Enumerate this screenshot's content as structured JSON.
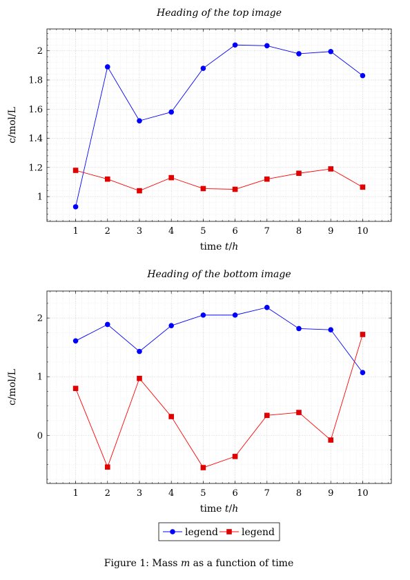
{
  "chart_data": [
    {
      "type": "line",
      "title": "Heading of the top image",
      "xlabel": "time t/h",
      "ylabel": "c/mol/L",
      "x": [
        1,
        2,
        3,
        4,
        5,
        6,
        7,
        8,
        9,
        10
      ],
      "xlim": [
        0.1,
        10.9
      ],
      "ylim": [
        0.83,
        2.15
      ],
      "yticks": [
        1,
        1.2,
        1.4,
        1.6,
        1.8,
        2
      ],
      "yminor_step": 0.04,
      "grid": true,
      "series": [
        {
          "name": "legend",
          "color": "#0000ff",
          "marker": "circle",
          "values": [
            0.93,
            1.89,
            1.52,
            1.58,
            1.88,
            2.04,
            2.035,
            1.98,
            1.995,
            1.83
          ]
        },
        {
          "name": "legend",
          "color": "#ff0000",
          "marker": "square",
          "values": [
            1.18,
            1.12,
            1.04,
            1.13,
            1.055,
            1.05,
            1.12,
            1.16,
            1.19,
            1.065
          ]
        }
      ]
    },
    {
      "type": "line",
      "title": "Heading of the bottom image",
      "xlabel": "time t/h",
      "ylabel": "c/mol/L",
      "x": [
        1,
        2,
        3,
        4,
        5,
        6,
        7,
        8,
        9,
        10
      ],
      "xlim": [
        0.1,
        10.9
      ],
      "ylim": [
        -0.82,
        2.46
      ],
      "yticks": [
        0,
        1,
        2
      ],
      "yminor_step": 0.25,
      "grid": true,
      "series": [
        {
          "name": "legend",
          "color": "#0000ff",
          "marker": "circle",
          "values": [
            1.61,
            1.89,
            1.43,
            1.87,
            2.05,
            2.05,
            2.18,
            1.82,
            1.8,
            1.07
          ]
        },
        {
          "name": "legend",
          "color": "#ff0000",
          "marker": "square",
          "values": [
            0.8,
            -0.54,
            0.97,
            0.32,
            -0.55,
            -0.36,
            0.34,
            0.39,
            -0.08,
            1.72
          ]
        }
      ]
    }
  ],
  "legend": {
    "position": "bottom-center",
    "entries": [
      {
        "label": "legend",
        "color": "#0000ff",
        "marker": "circle"
      },
      {
        "label": "legend",
        "color": "#ff0000",
        "marker": "square"
      }
    ]
  },
  "caption": {
    "prefix": "Figure 1: Mass ",
    "symbol": "m",
    "suffix": " as a function of time"
  }
}
